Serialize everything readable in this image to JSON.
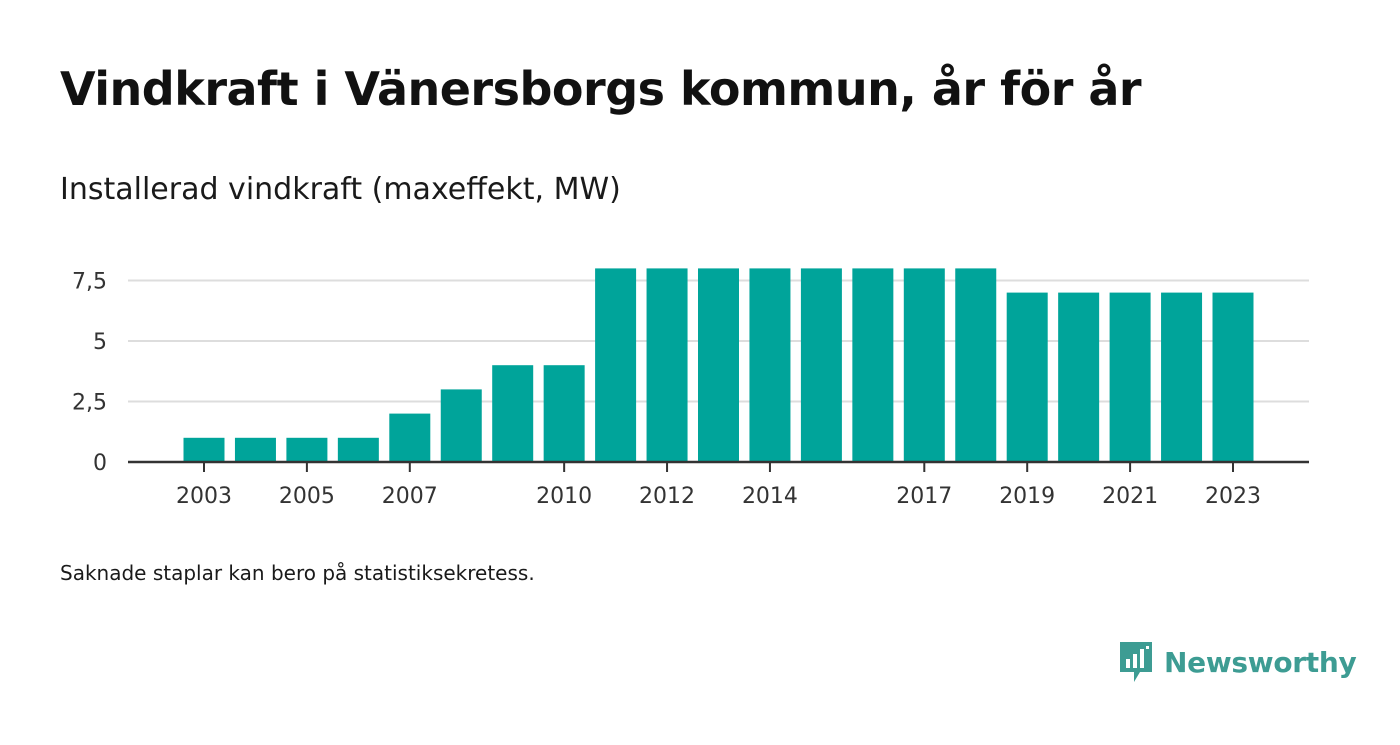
{
  "title": "Vindkraft i Vänersborgs kommun, år för år",
  "subtitle": "Installerad vindkraft (maxeffekt, MW)",
  "note": "Saknade staplar kan bero på statistiksekretess.",
  "brand": {
    "name": "Newsworthy",
    "icon": "newsworthy-logo-icon"
  },
  "colors": {
    "bar": "#00a49a",
    "grid": "#dddddd",
    "axis": "#333333",
    "brand": "#3d9c93"
  },
  "chart_data": {
    "type": "bar",
    "categories": [
      "2003",
      "2004",
      "2005",
      "2006",
      "2007",
      "2008",
      "2009",
      "2010",
      "2011",
      "2012",
      "2013",
      "2014",
      "2015",
      "2016",
      "2017",
      "2018",
      "2019",
      "2020",
      "2021",
      "2022",
      "2023"
    ],
    "values": [
      1,
      1,
      1,
      1,
      2,
      3,
      4,
      4,
      8,
      8,
      8,
      8,
      8,
      8,
      8,
      8,
      7,
      7,
      7,
      7,
      7
    ],
    "x_tick_labels": [
      "2003",
      "2005",
      "2007",
      "2010",
      "2012",
      "2014",
      "2017",
      "2019",
      "2021",
      "2023"
    ],
    "y_ticks": [
      0,
      2.5,
      5,
      7.5
    ],
    "y_tick_labels": [
      "0",
      "2,5",
      "5",
      "7,5"
    ],
    "ylim": [
      0,
      8
    ],
    "xlabel": "",
    "ylabel": "",
    "grid": true
  }
}
